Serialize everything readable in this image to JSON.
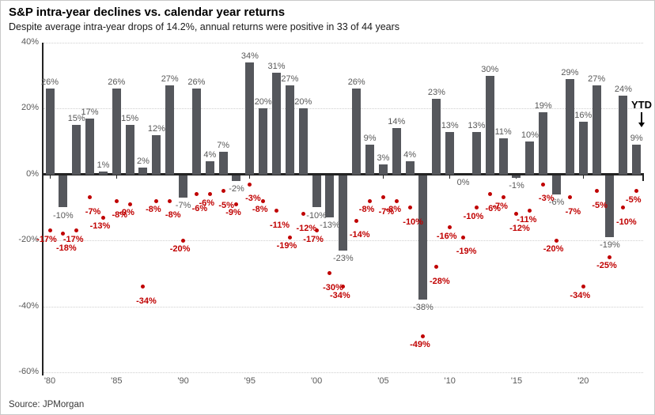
{
  "header": {
    "title": "S&P intra-year declines vs. calendar year returns",
    "subtitle": "Despite average intra-year drops of 14.2%, annual returns were positive in 33 of 44 years"
  },
  "footer": {
    "source": "Source: JPMorgan"
  },
  "chart_data": {
    "type": "bar",
    "title": "S&P intra-year declines vs. calendar year returns",
    "categories": [
      "1980",
      "1981",
      "1982",
      "1983",
      "1984",
      "1985",
      "1986",
      "1987",
      "1988",
      "1989",
      "1990",
      "1991",
      "1992",
      "1993",
      "1994",
      "1995",
      "1996",
      "1997",
      "1998",
      "1999",
      "2000",
      "2001",
      "2002",
      "2003",
      "2004",
      "2005",
      "2006",
      "2007",
      "2008",
      "2009",
      "2010",
      "2011",
      "2012",
      "2013",
      "2014",
      "2015",
      "2016",
      "2017",
      "2018",
      "2019",
      "2020",
      "2021",
      "2022",
      "2023",
      "YTD"
    ],
    "series": [
      {
        "name": "calendar-year-return",
        "type": "bar",
        "color": "#55575c",
        "values": [
          26,
          -10,
          15,
          17,
          1,
          26,
          15,
          2,
          12,
          27,
          -7,
          26,
          4,
          7,
          -2,
          34,
          20,
          31,
          27,
          20,
          -10,
          -13,
          -23,
          26,
          9,
          3,
          14,
          4,
          -38,
          23,
          13,
          0,
          13,
          30,
          11,
          -1,
          10,
          19,
          -6,
          29,
          16,
          27,
          -19,
          24,
          9
        ]
      },
      {
        "name": "intra-year-decline",
        "type": "scatter",
        "color": "#c00000",
        "values": [
          -17,
          -18,
          -17,
          -7,
          -13,
          -8,
          -9,
          -34,
          -8,
          -8,
          -20,
          -6,
          -6,
          -5,
          -9,
          -3,
          -8,
          -11,
          -19,
          -12,
          -17,
          -30,
          -34,
          -14,
          -8,
          -7,
          -8,
          -10,
          -49,
          -28,
          -16,
          -19,
          -10,
          -6,
          -7,
          -12,
          -11,
          -3,
          -20,
          -7,
          -34,
          -5,
          -25,
          -10,
          -5
        ]
      }
    ],
    "ylim": [
      -60,
      40
    ],
    "yticks": [
      40,
      20,
      0,
      -20,
      -40,
      -60
    ],
    "ytick_labels": [
      "40%",
      "20%",
      "0%",
      "-20%",
      "-40%",
      "-60%"
    ],
    "xticks": {
      "indices": [
        0,
        5,
        10,
        15,
        20,
        25,
        30,
        35,
        40
      ],
      "labels": [
        "'80",
        "'85",
        "'90",
        "'95",
        "'00",
        "'05",
        "'10",
        "'15",
        "'20"
      ]
    },
    "grid": "dotted-horizontal",
    "legend": "none",
    "annotation": {
      "text": "YTD",
      "points_to": "9%"
    }
  }
}
